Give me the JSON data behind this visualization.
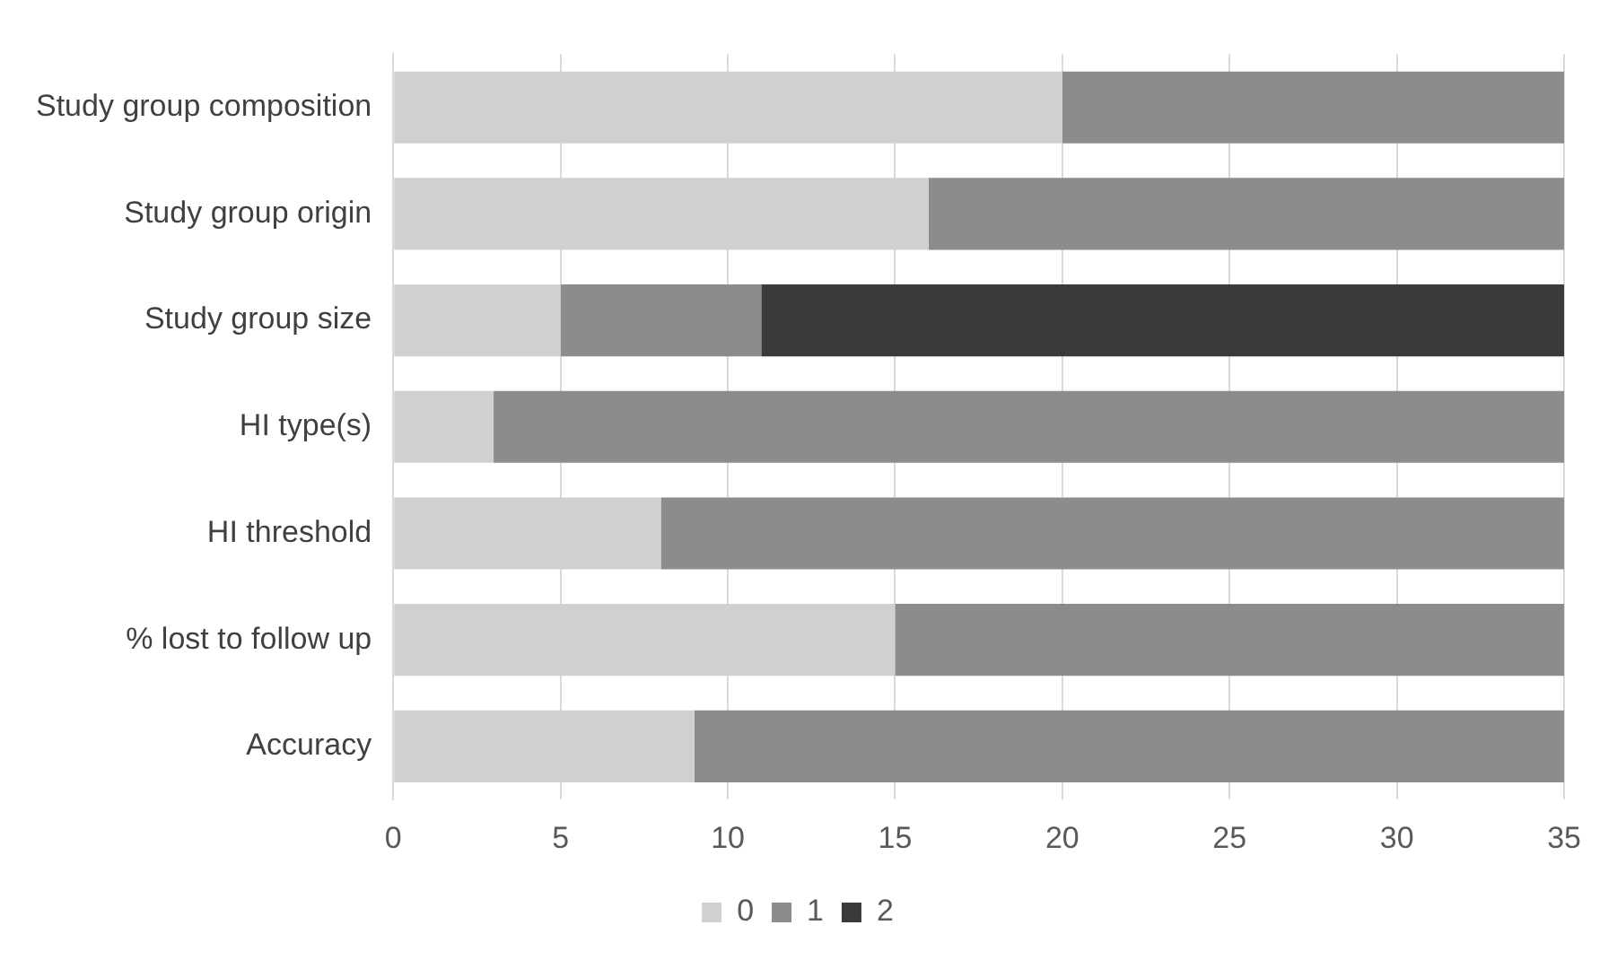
{
  "chart_data": {
    "type": "bar",
    "orientation": "horizontal",
    "stacked": true,
    "categories": [
      "Study group composition",
      "Study group origin",
      "Study group size",
      "HI type(s)",
      "HI threshold",
      "% lost to follow up",
      "Accuracy"
    ],
    "series": [
      {
        "name": "0",
        "color": "#d0d0d0",
        "values": [
          20,
          16,
          5,
          3,
          8,
          15,
          9
        ]
      },
      {
        "name": "1",
        "color": "#8c8c8c",
        "values": [
          15,
          19,
          6,
          32,
          27,
          20,
          26
        ]
      },
      {
        "name": "2",
        "color": "#3a3a3a",
        "values": [
          null,
          null,
          24,
          null,
          null,
          null,
          null
        ]
      }
    ],
    "xlim": [
      0,
      35
    ],
    "xticks": [
      0,
      5,
      10,
      15,
      20,
      25,
      30,
      35
    ],
    "grid": "x",
    "legend": "bottom"
  }
}
